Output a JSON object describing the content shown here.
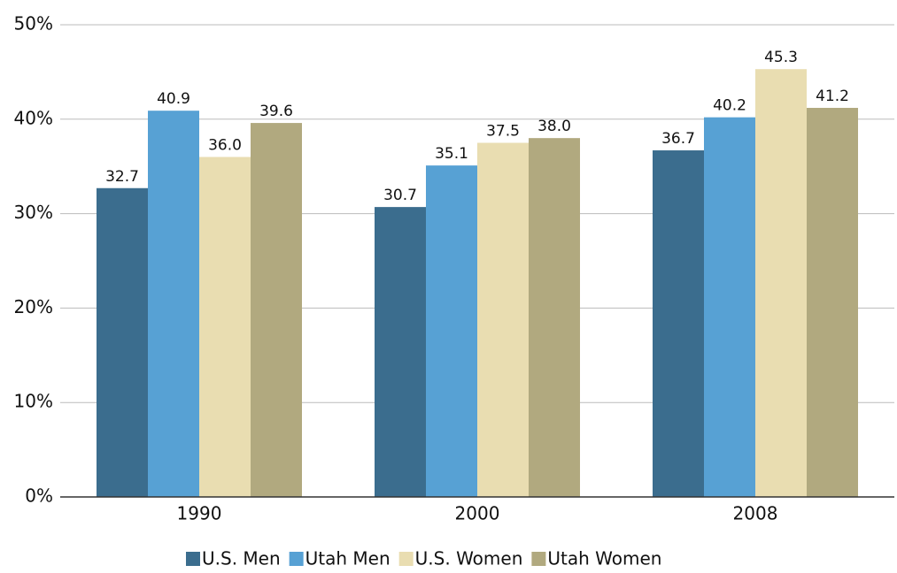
{
  "chart_data": {
    "type": "bar",
    "categories": [
      "1990",
      "2000",
      "2008"
    ],
    "series": [
      {
        "name": "U.S. Men",
        "color": "#3b6d8e",
        "values": [
          32.7,
          30.7,
          36.7
        ],
        "value_labels": [
          "32.7",
          "30.7",
          "36.7"
        ]
      },
      {
        "name": "Utah Men",
        "color": "#57a1d4",
        "values": [
          40.9,
          35.1,
          40.2
        ],
        "value_labels": [
          "40.9",
          "35.1",
          "40.2"
        ]
      },
      {
        "name": "U.S. Women",
        "color": "#e9ddb1",
        "values": [
          36.0,
          37.5,
          45.3
        ],
        "value_labels": [
          "36.0",
          "37.5",
          "45.3"
        ]
      },
      {
        "name": "Utah Women",
        "color": "#b1a97f",
        "values": [
          39.6,
          38.0,
          41.2
        ],
        "value_labels": [
          "39.6",
          "38.0",
          "41.2"
        ]
      }
    ],
    "ylim": [
      0,
      50
    ],
    "yticks": [
      {
        "value": 0,
        "label": "0%"
      },
      {
        "value": 10,
        "label": "10%"
      },
      {
        "value": 20,
        "label": "20%"
      },
      {
        "value": 30,
        "label": "30%"
      },
      {
        "value": 40,
        "label": "40%"
      },
      {
        "value": 50,
        "label": "50%"
      }
    ],
    "grid": true,
    "legend": "bottom"
  }
}
